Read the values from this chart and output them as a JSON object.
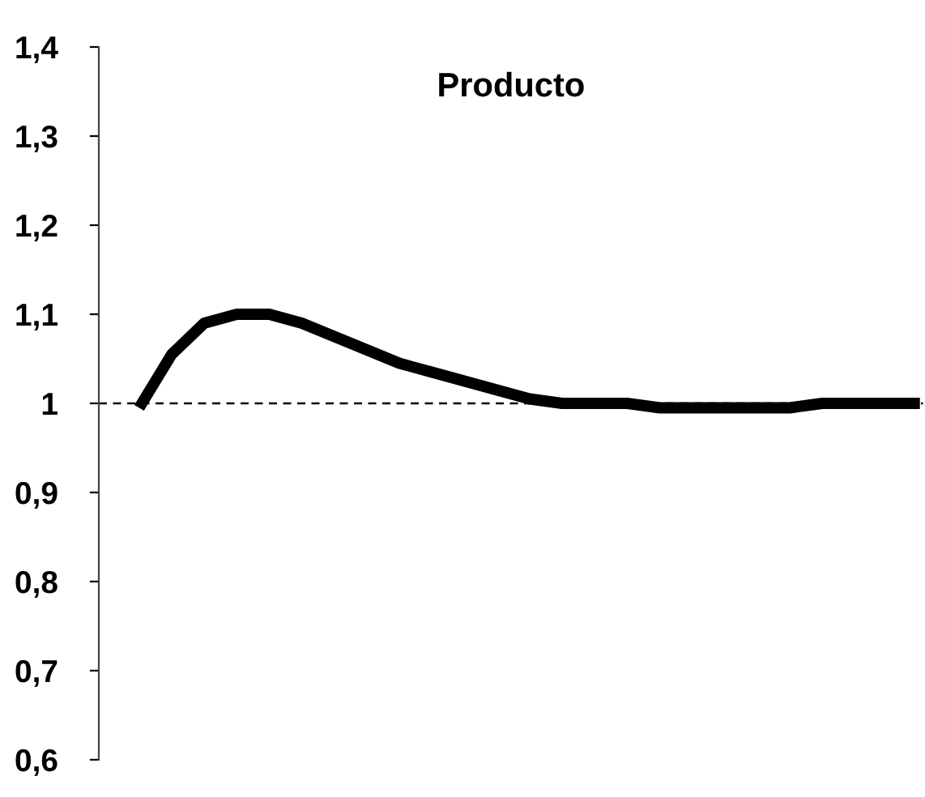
{
  "chart_data": {
    "type": "line",
    "title": "Producto",
    "categories": [
      null,
      null,
      null,
      null,
      null,
      null,
      null,
      null,
      null,
      null,
      null,
      null,
      null,
      null,
      null,
      null,
      null,
      null,
      null,
      null,
      null,
      null,
      null,
      null,
      null
    ],
    "series": [
      {
        "color": "#000000",
        "values": [
          0.995,
          1.055,
          1.09,
          1.1,
          1.1,
          1.09,
          1.075,
          1.06,
          1.045,
          1.035,
          1.025,
          1.015,
          1.005,
          1.0,
          1.0,
          1.0,
          0.995,
          0.995,
          0.995,
          0.995,
          0.995,
          1.0,
          1.0,
          1.0,
          1.0
        ]
      }
    ],
    "ylim": [
      0.6,
      1.4
    ],
    "yticks": [
      {
        "value": 0.6,
        "label": "0,6"
      },
      {
        "value": 0.7,
        "label": "0,7"
      },
      {
        "value": 0.8,
        "label": "0,8"
      },
      {
        "value": 0.9,
        "label": "0,9"
      },
      {
        "value": 1,
        "label": "1"
      },
      {
        "value": 1.1,
        "label": "1,1"
      },
      {
        "value": 1.2,
        "label": "1,2"
      },
      {
        "value": 1.3,
        "label": "1,3"
      },
      {
        "value": 1.4,
        "label": "1,4"
      }
    ],
    "ref_lines": [
      {
        "axis": "y",
        "value": 1,
        "color": "#000000",
        "line_style": "dashed"
      }
    ],
    "tick_labels": "y",
    "grid": false,
    "legend": false,
    "marker": "none",
    "line_style": "solid"
  }
}
